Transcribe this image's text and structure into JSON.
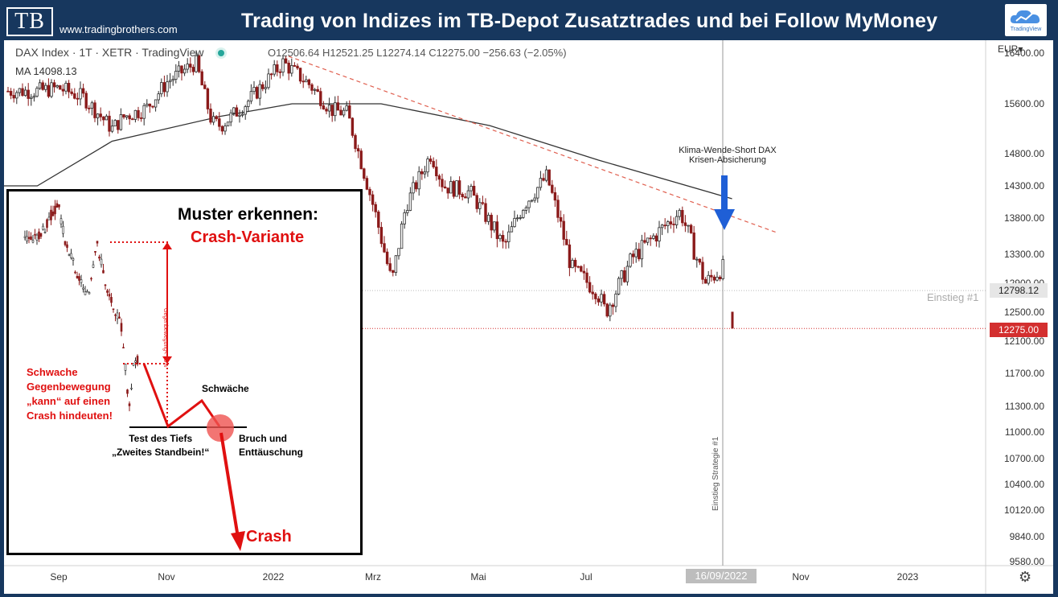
{
  "header": {
    "logo_text": "TB",
    "site_url": "www.tradingbrothers.com",
    "title": "Trading von Indizes im TB-Depot Zusatztrades und bei Follow MyMoney",
    "badge_text": "TradingView"
  },
  "legend": {
    "symbol": "DAX Index · 1T · XETR · TradingView",
    "ohlc": "O12506.64 H12521.25 L12274.14 C12275.00 −256.63 (−2.05%)",
    "ma": "MA  14098.13",
    "currency": "EUR"
  },
  "price_tags": {
    "entry_value": "12798.12",
    "entry_label": "Einstieg #1",
    "last_value": "12275.00",
    "date": "16/09/2022"
  },
  "annotations": {
    "klima_line1": "Klima-Wende-Short DAX",
    "klima_line2": "Krisen-Absicherung",
    "vertical_label": "Einstieg Strategie #1"
  },
  "inset": {
    "title": "Muster erkennen:",
    "subtitle": "Crash-Variante",
    "weak_line1": "Schwache",
    "weak_line2": "Gegenbewegung",
    "weak_line3": "„kann“ auf einen",
    "weak_line4": "Crash hindeuten!",
    "gegen_label": "Gegenbewegung< 50%",
    "schwaeche": "Schwäche",
    "test_line1": "Test des Tiefs",
    "test_line2": "„Zweites Standbein!“",
    "bruch_line1": "Bruch und",
    "bruch_line2": "Enttäuschung",
    "crash": "Crash"
  },
  "colors": {
    "header_bg": "#17375e",
    "up": "#2b2b2b",
    "down": "#8b1a1a",
    "ma": "#333333",
    "trend": "#e06050",
    "arrow": "#1f5fd6",
    "inset_red": "#e01010"
  },
  "chart_data": {
    "type": "candlestick",
    "symbol": "DAX Index",
    "timeframe": "1T",
    "yaxis_ticks": [
      16400,
      15600,
      14800,
      14300,
      13800,
      13300,
      12900,
      12500,
      12100,
      11700,
      11300,
      11000,
      10700,
      10400,
      10120,
      9840,
      9580
    ],
    "xaxis_ticks": [
      "Sep",
      "Nov",
      "2022",
      "Mrz",
      "Mai",
      "Jul",
      "Sep",
      "Nov",
      "2023"
    ],
    "ylim": [
      9580,
      16550
    ],
    "close_path": [
      [
        "2021-08-20",
        15800
      ],
      [
        "2021-09-01",
        15850
      ],
      [
        "2021-09-15",
        15700
      ],
      [
        "2021-10-01",
        15200
      ],
      [
        "2021-10-08",
        15400
      ],
      [
        "2021-10-20",
        15520
      ],
      [
        "2021-11-01",
        15950
      ],
      [
        "2021-11-17",
        16250
      ],
      [
        "2021-11-26",
        15300
      ],
      [
        "2021-12-01",
        15250
      ],
      [
        "2021-12-15",
        15600
      ],
      [
        "2022-01-05",
        16250
      ],
      [
        "2022-01-20",
        15900
      ],
      [
        "2022-02-01",
        15500
      ],
      [
        "2022-02-10",
        15450
      ],
      [
        "2022-02-24",
        14050
      ],
      [
        "2022-03-07",
        12900
      ],
      [
        "2022-03-15",
        14000
      ],
      [
        "2022-03-29",
        14800
      ],
      [
        "2022-04-05",
        14300
      ],
      [
        "2022-04-20",
        14200
      ],
      [
        "2022-05-09",
        13400
      ],
      [
        "2022-05-20",
        14000
      ],
      [
        "2022-06-02",
        14450
      ],
      [
        "2022-06-16",
        13100
      ],
      [
        "2022-06-30",
        12800
      ],
      [
        "2022-07-05",
        12500
      ],
      [
        "2022-07-20",
        13250
      ],
      [
        "2022-08-16",
        13900
      ],
      [
        "2022-08-30",
        12900
      ],
      [
        "2022-09-08",
        13100
      ],
      [
        "2022-09-13",
        13150
      ],
      [
        "2022-09-16",
        12275
      ]
    ],
    "ma_path": [
      [
        "2021-08-20",
        14300
      ],
      [
        "2021-10-01",
        15000
      ],
      [
        "2021-12-01",
        15400
      ],
      [
        "2022-01-10",
        15600
      ],
      [
        "2022-03-01",
        15600
      ],
      [
        "2022-05-01",
        15250
      ],
      [
        "2022-07-01",
        14700
      ],
      [
        "2022-09-14",
        14100
      ]
    ],
    "ma_value": 14098.13,
    "downtrend_line": [
      [
        "2022-01-08",
        16350
      ],
      [
        "2022-09-30",
        13600
      ]
    ],
    "last_close": 12275.0,
    "entry_level": 12798.12,
    "entry_date": "16/09/2022"
  }
}
